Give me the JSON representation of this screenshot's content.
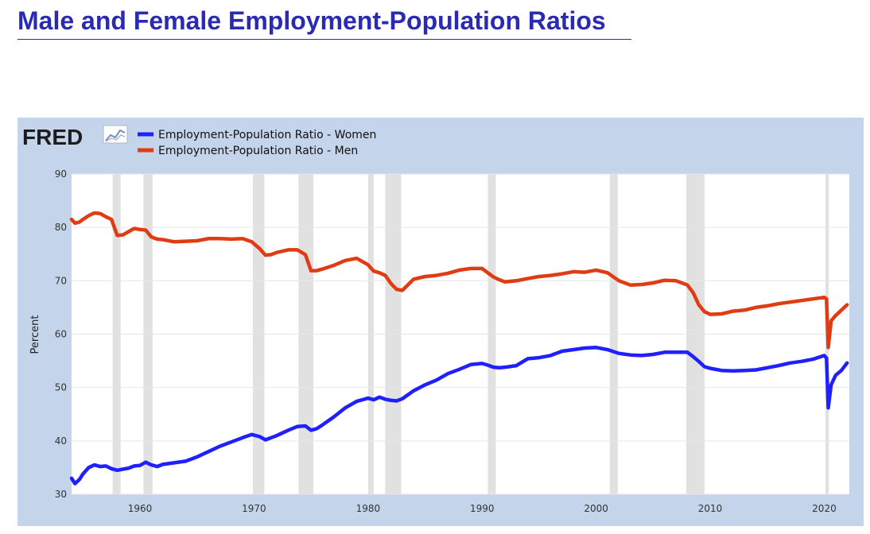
{
  "page": {
    "title": "Male and Female Employment-Population Ratios"
  },
  "chart_data": {
    "type": "line",
    "brand": "FRED",
    "title": "",
    "xlabel": "",
    "ylabel": "Percent",
    "xlim": [
      1954,
      2022.2
    ],
    "ylim": [
      30,
      90
    ],
    "y_ticks": [
      30,
      40,
      50,
      60,
      70,
      80,
      90
    ],
    "x_ticks": [
      1960,
      1970,
      1980,
      1990,
      2000,
      2010,
      2020
    ],
    "grid": true,
    "legend_position": "top-left",
    "colors": {
      "women": "#1f1fff",
      "men": "#e03c14",
      "recession": "#e1e1e1",
      "frame": "#c4d4ea",
      "title": "#2a2ab4"
    },
    "recessions": [
      [
        1957.6,
        1958.3
      ],
      [
        1960.3,
        1961.1
      ],
      [
        1969.9,
        1970.9
      ],
      [
        1973.9,
        1975.2
      ],
      [
        1980.0,
        1980.5
      ],
      [
        1981.5,
        1982.9
      ],
      [
        1990.5,
        1991.2
      ],
      [
        2001.2,
        2001.9
      ],
      [
        2007.9,
        2009.5
      ],
      [
        2020.1,
        2020.4
      ]
    ],
    "series": [
      {
        "key": "women",
        "name": "Employment-Population Ratio - Women",
        "x": [
          1954.0,
          1954.3,
          1954.7,
          1955.0,
          1955.5,
          1956.0,
          1956.5,
          1957.0,
          1957.5,
          1958.0,
          1958.5,
          1959.0,
          1959.5,
          1960.0,
          1960.5,
          1961.0,
          1961.5,
          1962.0,
          1963.0,
          1964.0,
          1965.0,
          1966.0,
          1967.0,
          1968.0,
          1969.0,
          1969.8,
          1970.5,
          1971.0,
          1971.5,
          1972.0,
          1973.0,
          1973.8,
          1974.5,
          1975.0,
          1975.5,
          1976.0,
          1977.0,
          1978.0,
          1979.0,
          1980.0,
          1980.5,
          1981.0,
          1981.5,
          1982.0,
          1982.5,
          1983.0,
          1984.0,
          1985.0,
          1986.0,
          1987.0,
          1988.0,
          1989.0,
          1990.0,
          1990.5,
          1991.0,
          1991.5,
          1992.0,
          1993.0,
          1994.0,
          1995.0,
          1996.0,
          1997.0,
          1998.0,
          1999.0,
          2000.0,
          2001.0,
          2002.0,
          2003.0,
          2004.0,
          2005.0,
          2006.0,
          2007.0,
          2008.0,
          2008.5,
          2009.0,
          2009.5,
          2010.0,
          2011.0,
          2012.0,
          2013.0,
          2014.0,
          2015.0,
          2016.0,
          2017.0,
          2018.0,
          2019.0,
          2020.0,
          2020.2,
          2020.35,
          2020.6,
          2021.0,
          2021.5,
          2022.0
        ],
        "values": [
          33.0,
          32.0,
          32.8,
          33.8,
          35.0,
          35.5,
          35.2,
          35.3,
          34.8,
          34.5,
          34.7,
          34.9,
          35.3,
          35.4,
          36.0,
          35.5,
          35.2,
          35.6,
          35.9,
          36.2,
          37.0,
          38.0,
          39.0,
          39.8,
          40.6,
          41.2,
          40.8,
          40.2,
          40.6,
          41.0,
          42.0,
          42.7,
          42.8,
          42.0,
          42.3,
          43.0,
          44.5,
          46.2,
          47.4,
          48.0,
          47.7,
          48.2,
          47.8,
          47.6,
          47.5,
          47.9,
          49.4,
          50.5,
          51.4,
          52.6,
          53.4,
          54.3,
          54.5,
          54.2,
          53.8,
          53.7,
          53.8,
          54.1,
          55.4,
          55.6,
          56.0,
          56.8,
          57.1,
          57.4,
          57.5,
          57.1,
          56.4,
          56.1,
          56.0,
          56.2,
          56.6,
          56.6,
          56.6,
          55.8,
          54.9,
          53.9,
          53.6,
          53.2,
          53.1,
          53.2,
          53.3,
          53.7,
          54.1,
          54.6,
          54.9,
          55.3,
          56.0,
          55.5,
          46.2,
          50.5,
          52.3,
          53.2,
          54.6
        ]
      },
      {
        "key": "men",
        "name": "Employment-Population Ratio - Men",
        "x": [
          1954.0,
          1954.3,
          1954.7,
          1955.0,
          1955.5,
          1956.0,
          1956.5,
          1957.0,
          1957.5,
          1958.0,
          1958.5,
          1959.0,
          1959.5,
          1960.0,
          1960.5,
          1961.0,
          1961.5,
          1962.0,
          1963.0,
          1964.0,
          1965.0,
          1966.0,
          1967.0,
          1968.0,
          1969.0,
          1969.8,
          1970.5,
          1971.0,
          1971.5,
          1972.0,
          1973.0,
          1973.8,
          1974.5,
          1975.0,
          1975.5,
          1976.0,
          1977.0,
          1978.0,
          1979.0,
          1980.0,
          1980.5,
          1981.0,
          1981.5,
          1982.0,
          1982.5,
          1983.0,
          1984.0,
          1985.0,
          1986.0,
          1987.0,
          1988.0,
          1989.0,
          1990.0,
          1990.5,
          1991.0,
          1991.5,
          1992.0,
          1993.0,
          1994.0,
          1995.0,
          1996.0,
          1997.0,
          1998.0,
          1999.0,
          2000.0,
          2001.0,
          2002.0,
          2003.0,
          2004.0,
          2005.0,
          2006.0,
          2007.0,
          2008.0,
          2008.5,
          2009.0,
          2009.5,
          2010.0,
          2011.0,
          2012.0,
          2013.0,
          2014.0,
          2015.0,
          2016.0,
          2017.0,
          2018.0,
          2019.0,
          2020.0,
          2020.2,
          2020.35,
          2020.6,
          2021.0,
          2021.5,
          2022.0
        ],
        "values": [
          81.5,
          80.8,
          81.0,
          81.5,
          82.2,
          82.7,
          82.6,
          82.0,
          81.5,
          78.5,
          78.6,
          79.2,
          79.8,
          79.6,
          79.5,
          78.2,
          77.8,
          77.7,
          77.3,
          77.4,
          77.5,
          77.9,
          77.9,
          77.8,
          77.9,
          77.3,
          76.0,
          74.8,
          74.9,
          75.3,
          75.8,
          75.8,
          74.9,
          71.9,
          71.9,
          72.2,
          72.9,
          73.8,
          74.2,
          73.0,
          71.8,
          71.5,
          71.0,
          69.5,
          68.4,
          68.2,
          70.3,
          70.8,
          71.0,
          71.4,
          72.0,
          72.3,
          72.3,
          71.5,
          70.7,
          70.2,
          69.8,
          70.0,
          70.4,
          70.8,
          71.0,
          71.3,
          71.7,
          71.6,
          72.0,
          71.5,
          70.0,
          69.2,
          69.3,
          69.6,
          70.1,
          70.0,
          69.2,
          67.8,
          65.5,
          64.2,
          63.7,
          63.8,
          64.3,
          64.5,
          65.0,
          65.3,
          65.7,
          66.0,
          66.3,
          66.6,
          66.9,
          66.6,
          57.5,
          62.5,
          63.5,
          64.5,
          65.5
        ]
      }
    ]
  }
}
